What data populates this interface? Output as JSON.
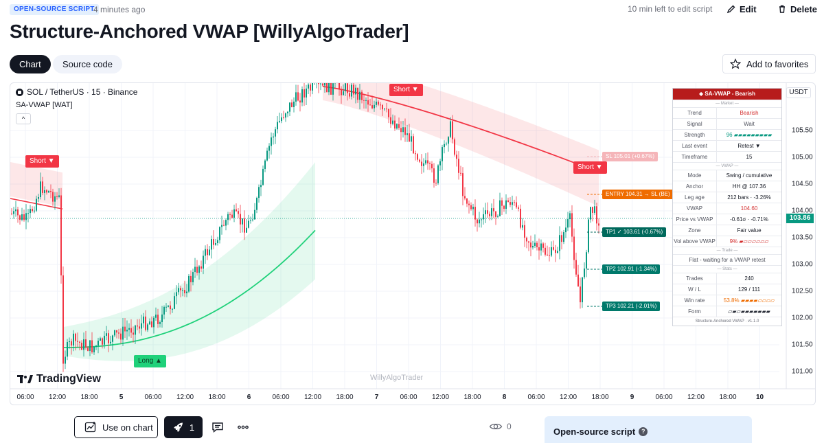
{
  "header": {
    "badge": "OPEN-SOURCE SCRIPT",
    "time_ago": "4 minutes ago",
    "edit_time_left": "10 min left to edit script",
    "edit_label": "Edit",
    "delete_label": "Delete",
    "title": "Structure-Anchored VWAP [WillyAlgoTrader]"
  },
  "tabs": [
    {
      "label": "Chart",
      "active": true
    },
    {
      "label": "Source code",
      "active": false
    }
  ],
  "favorites_label": "Add to favorites",
  "chart": {
    "symbol": "SOL / TetherUS · 15 · Binance",
    "indicator": "SA-VWAP [WAT]",
    "collapse_glyph": "^",
    "currency": "USDT",
    "last_price": "103.86",
    "watermark": "WillyAlgoTrader",
    "logo_text": "TradingView",
    "y_ticks": [
      "105.50",
      "105.00",
      "104.50",
      "104.00",
      "103.50",
      "103.00",
      "102.50",
      "102.00",
      "101.50",
      "101.00"
    ],
    "x_ticks": [
      {
        "label": "06:00",
        "bold": false
      },
      {
        "label": "12:00",
        "bold": false
      },
      {
        "label": "18:00",
        "bold": false
      },
      {
        "label": "5",
        "bold": true
      },
      {
        "label": "06:00",
        "bold": false
      },
      {
        "label": "12:00",
        "bold": false
      },
      {
        "label": "18:00",
        "bold": false
      },
      {
        "label": "6",
        "bold": true
      },
      {
        "label": "06:00",
        "bold": false
      },
      {
        "label": "12:00",
        "bold": false
      },
      {
        "label": "18:00",
        "bold": false
      },
      {
        "label": "7",
        "bold": true
      },
      {
        "label": "06:00",
        "bold": false
      },
      {
        "label": "12:00",
        "bold": false
      },
      {
        "label": "18:00",
        "bold": false
      },
      {
        "label": "8",
        "bold": true
      },
      {
        "label": "06:00",
        "bold": false
      },
      {
        "label": "12:00",
        "bold": false
      },
      {
        "label": "18:00",
        "bold": false
      },
      {
        "label": "9",
        "bold": true
      },
      {
        "label": "06:00",
        "bold": false
      },
      {
        "label": "12:00",
        "bold": false
      },
      {
        "label": "18:00",
        "bold": false
      },
      {
        "label": "10",
        "bold": true
      }
    ],
    "signals": {
      "short1": "Short ▼",
      "short2": "Short ▼",
      "short3": "Short ▼",
      "long1": "Long ▲"
    },
    "levels": {
      "sl": "SL 105.01 (+0.67%)",
      "entry": "ENTRY 104.31 → SL (BE)",
      "tp1": "TP1 ✓ 103.61 (-0.67%)",
      "tp2": "TP2 102.91 (-1.34%)",
      "tp3": "TP3 102.21 (-2.01%)"
    },
    "colors": {
      "bull": "#089981",
      "bear": "#f23645",
      "vwap_bear": "#f23645",
      "vwap_bull": "#1fd17a",
      "entry": "#ef6c00",
      "tp": "#00796b"
    }
  },
  "info_table": {
    "header": "◆ SA-VWAP - Bearish",
    "sections": {
      "market": "— Market —",
      "vwap": "— VWAP —",
      "trade": "— Trade —",
      "stats": "— Stats —"
    },
    "rows": {
      "trend": {
        "k": "Trend",
        "v": "Bearish"
      },
      "signal": {
        "k": "Signal",
        "v": "Wait"
      },
      "strength": {
        "k": "Strength",
        "v": "96",
        "bar": "▰▰▰▰▰▰▰▰▰"
      },
      "last_event": {
        "k": "Last event",
        "v": "Retest ▼"
      },
      "timeframe": {
        "k": "Timeframe",
        "v": "15"
      },
      "mode": {
        "k": "Mode",
        "v": "Swing / cumulative"
      },
      "anchor": {
        "k": "Anchor",
        "v": "HH @ 107.36"
      },
      "leg_age": {
        "k": "Leg age",
        "v": "212 bars · -3.26%"
      },
      "vwap": {
        "k": "VWAP",
        "v": "104.60"
      },
      "price_vs_vwap": {
        "k": "Price vs VWAP",
        "v": "-0.61σ · -0.71%"
      },
      "zone": {
        "k": "Zone",
        "v": "Fair value"
      },
      "vol_above": {
        "k": "Vol above VWAP",
        "v": "9%",
        "bar": "▰▱▱▱▱▱▱"
      },
      "trade_status": "Flat - waiting for a VWAP retest",
      "trades": {
        "k": "Trades",
        "v": "240"
      },
      "wl": {
        "k": "W / L",
        "v": "129 / 111"
      },
      "win_rate": {
        "k": "Win rate",
        "v": "53.8%",
        "bar": "▰▰▰▰▱▱▱▱"
      },
      "form": {
        "k": "Form",
        "v": "▱▰▱▰▰▰▰▰▰▰"
      }
    },
    "footer": "Structure-Anchored VWAP · v1.1.0"
  },
  "bottom": {
    "use_on_chart": "Use on chart",
    "boosts": "1",
    "views": "0",
    "open_source_title": "Open-source script",
    "help_glyph": "?"
  }
}
